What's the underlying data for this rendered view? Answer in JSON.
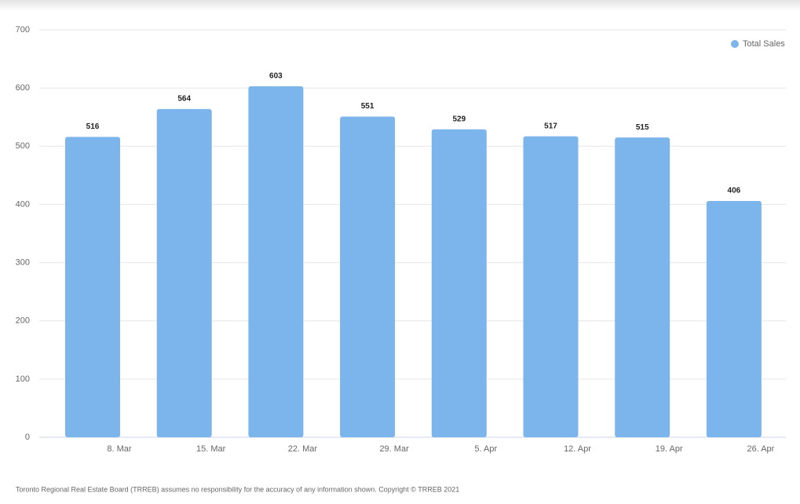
{
  "chart_data": {
    "type": "bar",
    "categories": [
      "8. Mar",
      "15. Mar",
      "22. Mar",
      "29. Mar",
      "5. Apr",
      "12. Apr",
      "19. Apr",
      "26. Apr"
    ],
    "series": [
      {
        "name": "Total Sales",
        "color": "#7cb5ec",
        "values": [
          516,
          564,
          603,
          551,
          529,
          517,
          515,
          406
        ]
      }
    ],
    "ylim": [
      0,
      700
    ],
    "yticks": [
      0,
      100,
      200,
      300,
      400,
      500,
      600,
      700
    ],
    "grid": true,
    "legend": "top-right",
    "footer": "Toronto Regional Real Estate Board (TRREB) assumes no responsibility for the accuracy of any information shown. Copyright © TRREB 2021"
  }
}
